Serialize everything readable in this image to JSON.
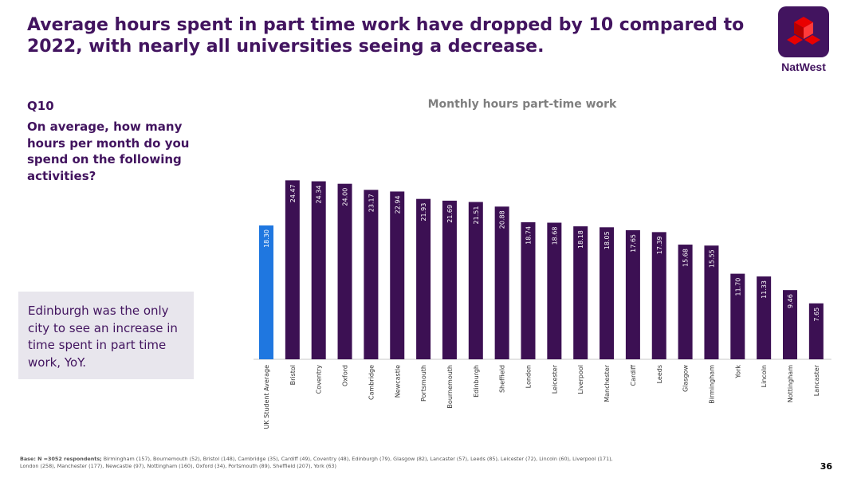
{
  "header": {
    "title": "Average hours spent in part time work have dropped by 10 compared to 2022, with nearly all universities seeing a decrease.",
    "brand_name": "NatWest",
    "logo_icon": "natwest-cubes-logo"
  },
  "question": {
    "number": "Q10",
    "text": "On average, how many hours per month do you spend on the following activities?"
  },
  "insight": {
    "text": "Edinburgh was the only city to see an increase in time spent in part time work, YoY."
  },
  "footer": {
    "base_label": "Base: N =3052 respondents;",
    "base_detail": " Birmingham (157),  Bournemouth (52), Bristol (148), Cambridge (35), Cardiff (49), Coventry (48),  Edinburgh (79), Glasgow (82), Lancaster (57), Leeds (85), Leicester (72), Lincoln (60), Liverpool (171), London (258), Manchester (177), Newcastle (97), Nottingham (160), Oxford (34), Portsmouth (89), Sheffield (207), York (63)",
    "page_number": "36"
  },
  "colors": {
    "brand_purple": "#42145f",
    "bar_purple": "#3c1053",
    "highlight_blue": "#1f77e0",
    "logo_red": "#e90000"
  },
  "chart_data": {
    "type": "bar",
    "title": "Monthly hours part-time work",
    "categories": [
      "UK Student Average",
      "Bristol",
      "Coventry",
      "Oxford",
      "Cambridge",
      "Newcastle",
      "Portsmouth",
      "Bournemouth",
      "Edinburgh",
      "Sheffield",
      "London",
      "Leicester",
      "Liverpool",
      "Manchester",
      "Cardiff",
      "Leeds",
      "Glasgow",
      "Birmingham",
      "York",
      "Lincoln",
      "Nottingham",
      "Lancaster"
    ],
    "values": [
      18.3,
      24.47,
      24.34,
      24.0,
      23.17,
      22.94,
      21.93,
      21.69,
      21.51,
      20.88,
      18.74,
      18.68,
      18.18,
      18.05,
      17.65,
      17.39,
      15.68,
      15.55,
      11.7,
      11.33,
      9.46,
      7.65
    ],
    "value_labels": [
      "18.30",
      "24.47",
      "24.34",
      "24.00",
      "23.17",
      "22.94",
      "21.93",
      "21.69",
      "21.51",
      "20.88",
      "18.74",
      "18.68",
      "18.18",
      "18.05",
      "17.65",
      "17.39",
      "15.68",
      "15.55",
      "11.70",
      "11.33",
      "9.46",
      "7.65"
    ],
    "highlight_index": 0,
    "ylim": [
      0,
      25
    ],
    "grid": false,
    "xlabel": "",
    "ylabel": ""
  }
}
